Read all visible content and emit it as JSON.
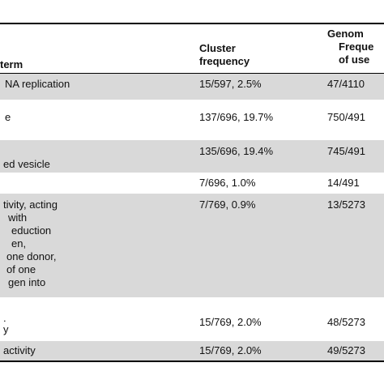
{
  "header": {
    "col1": "term",
    "col2_line1": "Cluster",
    "col2_line2": "frequency",
    "col3_line1": "Genom",
    "col3_line2": "Freque",
    "col3_line3": "of use"
  },
  "rows": [
    {
      "shaded": true,
      "term": [
        "NA replication"
      ],
      "cluster": "15/597, 2.5%",
      "genome": "47/4110"
    },
    {
      "shaded": false,
      "term": [
        "e"
      ],
      "cluster": "137/696, 19.7%",
      "genome": "750/491"
    },
    {
      "shaded": true,
      "term": [
        "ed vesicle"
      ],
      "cluster": "135/696, 19.4%",
      "genome": "745/491"
    },
    {
      "shaded": false,
      "term": [
        ""
      ],
      "cluster": "7/696, 1.0%",
      "genome": "14/491"
    },
    {
      "shaded": true,
      "term": [
        "tivity, acting",
        " with",
        "eduction",
        "en,",
        "one donor,",
        " of one",
        "gen into"
      ],
      "cluster": "7/769, 0.9%",
      "genome": "13/5273"
    },
    {
      "shaded": false,
      "term": [
        ".",
        "y"
      ],
      "cluster": "15/769, 2.0%",
      "genome": "48/5273"
    },
    {
      "shaded": true,
      "term": [
        "activity"
      ],
      "cluster": "15/769, 2.0%",
      "genome": "49/5273"
    }
  ]
}
